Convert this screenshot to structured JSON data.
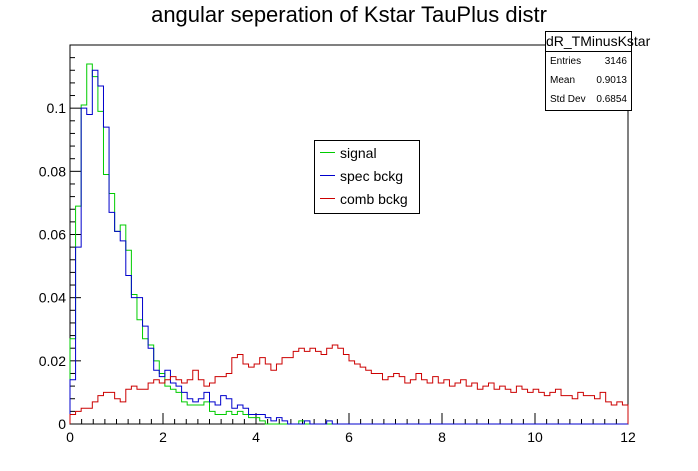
{
  "chart_data": {
    "type": "histogram",
    "title": "angular seperation of Kstar TauPlus distr",
    "xlim": [
      0,
      12
    ],
    "ylim": [
      0,
      0.12
    ],
    "x_ticks": [
      0,
      2,
      4,
      6,
      8,
      10,
      12
    ],
    "y_ticks": [
      0,
      0.02,
      0.04,
      0.06,
      0.08,
      0.1
    ],
    "x_tick_labels": [
      "0",
      "2",
      "4",
      "6",
      "8",
      "10",
      "12"
    ],
    "y_tick_labels": [
      "0",
      "0.02",
      "0.04",
      "0.06",
      "0.08",
      "0.1"
    ],
    "bin_width": 0.12,
    "legend": {
      "placement": "center",
      "entries": [
        "signal",
        "spec bckg",
        "comb bckg"
      ]
    },
    "stats_box": {
      "name": "dR_TMinusKstar",
      "rows": [
        {
          "label": "Entries",
          "value": "3146"
        },
        {
          "label": "Mean",
          "value": "0.9013"
        },
        {
          "label": "Std Dev",
          "value": "0.6854"
        }
      ]
    },
    "series": [
      {
        "name": "signal",
        "color": "#00cc00",
        "values": [
          0.027,
          0.069,
          0.101,
          0.114,
          0.11,
          0.099,
          0.079,
          0.073,
          0.061,
          0.063,
          0.055,
          0.041,
          0.033,
          0.027,
          0.025,
          0.02,
          0.016,
          0.012,
          0.011,
          0.01,
          0.007,
          0.006,
          0.006,
          0.006,
          0.007,
          0.004,
          0.003,
          0.003,
          0.004,
          0.003,
          0.004,
          0.003,
          0.002,
          0.002,
          0.001,
          0,
          0,
          0,
          0,
          0,
          0,
          0.001,
          0,
          0,
          0,
          0,
          0,
          0,
          0,
          0,
          0,
          0,
          0,
          0,
          0,
          0,
          0,
          0,
          0,
          0,
          0,
          0,
          0,
          0,
          0,
          0,
          0,
          0,
          0,
          0,
          0,
          0,
          0,
          0,
          0,
          0,
          0,
          0,
          0,
          0,
          0,
          0,
          0,
          0,
          0,
          0,
          0,
          0,
          0,
          0,
          0,
          0,
          0,
          0,
          0,
          0,
          0,
          0,
          0,
          0
        ]
      },
      {
        "name": "spec bckg",
        "color": "#0000cc",
        "values": [
          0.014,
          0.056,
          0.1,
          0.098,
          0.112,
          0.107,
          0.094,
          0.067,
          0.061,
          0.058,
          0.047,
          0.04,
          0.04,
          0.031,
          0.024,
          0.017,
          0.015,
          0.017,
          0.013,
          0.012,
          0.01,
          0.008,
          0.007,
          0.008,
          0.01,
          0.007,
          0.006,
          0.009,
          0.008,
          0.005,
          0.006,
          0.005,
          0.003,
          0.003,
          0.003,
          0.002,
          0.001,
          0.002,
          0.001,
          0,
          0,
          0,
          0.001,
          0,
          0,
          0,
          0.001,
          0,
          0,
          0,
          0,
          0,
          0,
          0,
          0,
          0,
          0,
          0,
          0,
          0,
          0,
          0,
          0,
          0,
          0,
          0,
          0,
          0,
          0,
          0,
          0,
          0,
          0,
          0,
          0,
          0,
          0,
          0,
          0,
          0,
          0,
          0,
          0,
          0,
          0,
          0,
          0,
          0,
          0,
          0,
          0,
          0,
          0,
          0,
          0,
          0,
          0,
          0,
          0,
          0
        ]
      },
      {
        "name": "comb bckg",
        "color": "#cc0000",
        "values": [
          0.003,
          0.004,
          0.005,
          0.005,
          0.007,
          0.009,
          0.01,
          0.01,
          0.008,
          0.007,
          0.011,
          0.012,
          0.011,
          0.011,
          0.013,
          0.014,
          0.013,
          0.014,
          0.015,
          0.014,
          0.013,
          0.014,
          0.017,
          0.014,
          0.012,
          0.013,
          0.015,
          0.015,
          0.016,
          0.021,
          0.022,
          0.019,
          0.018,
          0.019,
          0.021,
          0.019,
          0.017,
          0.019,
          0.021,
          0.021,
          0.023,
          0.024,
          0.023,
          0.024,
          0.023,
          0.022,
          0.024,
          0.025,
          0.024,
          0.022,
          0.02,
          0.019,
          0.018,
          0.017,
          0.016,
          0.016,
          0.014,
          0.015,
          0.016,
          0.015,
          0.013,
          0.014,
          0.016,
          0.014,
          0.013,
          0.015,
          0.013,
          0.014,
          0.012,
          0.013,
          0.014,
          0.012,
          0.013,
          0.011,
          0.012,
          0.013,
          0.011,
          0.012,
          0.011,
          0.01,
          0.012,
          0.011,
          0.01,
          0.011,
          0.01,
          0.009,
          0.01,
          0.011,
          0.009,
          0.009,
          0.008,
          0.01,
          0.009,
          0.009,
          0.008,
          0.01,
          0.007,
          0.006,
          0.007,
          0.006
        ]
      }
    ]
  }
}
